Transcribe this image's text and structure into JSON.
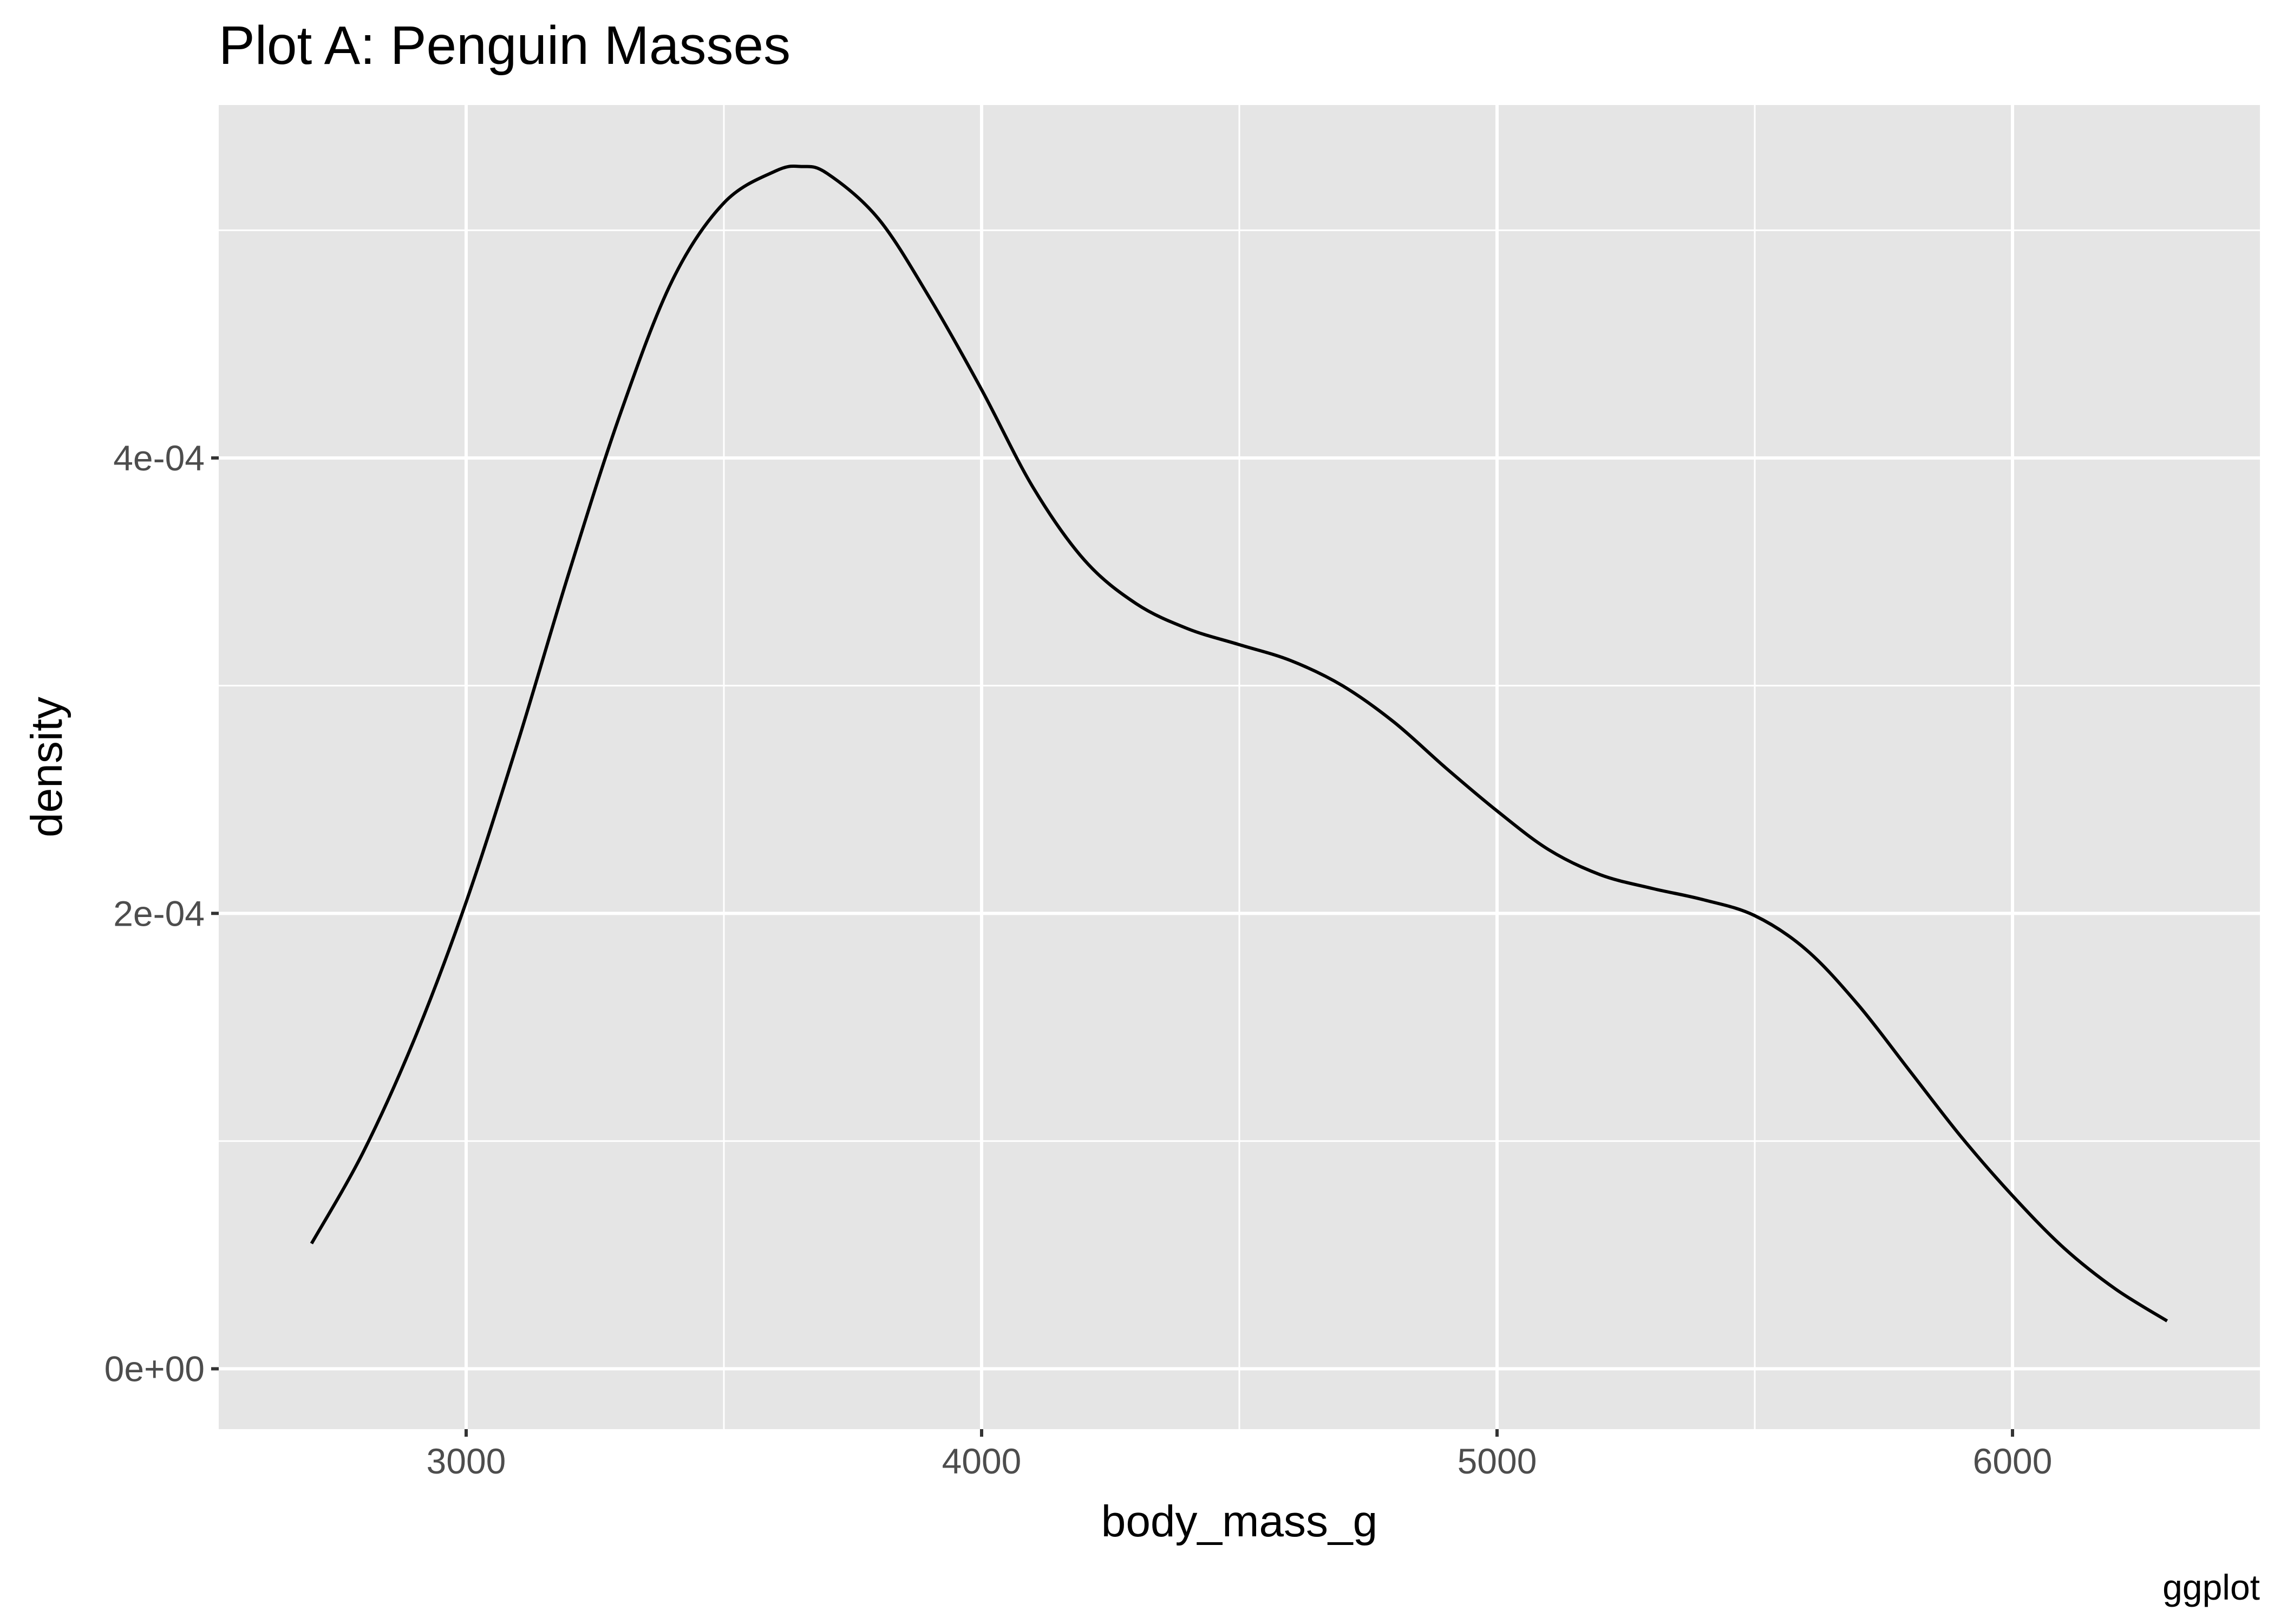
{
  "chart_data": {
    "type": "line",
    "geom": "density",
    "title": "Plot A: Penguin Masses",
    "xlabel": "body_mass_g",
    "ylabel": "density",
    "caption": "ggplot",
    "xlim": [
      2520,
      6480
    ],
    "ylim": [
      -2.65e-05,
      0.000555
    ],
    "x_ticks": [
      3000,
      4000,
      5000,
      6000
    ],
    "x_tick_labels": [
      "3000",
      "4000",
      "5000",
      "6000"
    ],
    "y_ticks": [
      0,
      0.0002,
      0.0004
    ],
    "y_tick_labels": [
      "0e+00",
      "2e-04",
      "4e-04"
    ],
    "x_minor": [
      3500,
      4500,
      5500
    ],
    "y_minor": [
      0.0001,
      0.0003,
      0.0005
    ],
    "grid": true,
    "background": "#E5E5E5",
    "line_color": "#000000",
    "series": [
      {
        "x": [
          2700,
          2800,
          2900,
          3000,
          3100,
          3200,
          3300,
          3400,
          3500,
          3600,
          3650,
          3700,
          3800,
          3900,
          4000,
          4100,
          4200,
          4300,
          4400,
          4500,
          4600,
          4700,
          4800,
          4900,
          5000,
          5100,
          5200,
          5300,
          5400,
          5500,
          5600,
          5700,
          5800,
          5900,
          6000,
          6100,
          6200,
          6300
        ],
        "y": [
          5.5e-05,
          9.5e-05,
          0.000145,
          0.000205,
          0.000275,
          0.00035,
          0.00042,
          0.000478,
          0.000512,
          0.000526,
          0.000528,
          0.000525,
          0.000505,
          0.00047,
          0.00043,
          0.000387,
          0.000355,
          0.000336,
          0.000325,
          0.000318,
          0.000311,
          0.0003,
          0.000284,
          0.000264,
          0.000245,
          0.000228,
          0.000217,
          0.000211,
          0.000206,
          0.000199,
          0.000184,
          0.00016,
          0.000131,
          0.000102,
          7.6e-05,
          5.3e-05,
          3.5e-05,
          2.1e-05
        ]
      }
    ]
  }
}
